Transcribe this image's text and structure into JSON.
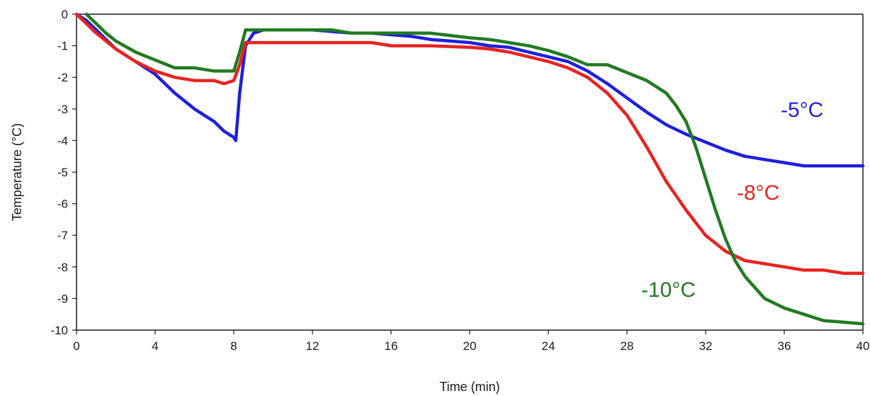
{
  "chart_data": {
    "type": "line",
    "xlabel": "Time (min)",
    "ylabel": "Temperature (°C)",
    "xlim": [
      0,
      40
    ],
    "ylim": [
      -10,
      0
    ],
    "xticks": [
      0,
      4,
      8,
      12,
      16,
      20,
      24,
      28,
      32,
      36,
      40
    ],
    "yticks": [
      0,
      -1,
      -2,
      -3,
      -4,
      -5,
      -6,
      -7,
      -8,
      -9,
      -10
    ],
    "grid": false,
    "legend": "inline labels",
    "series": [
      {
        "name": "-5°C",
        "color": "#1f1fdc",
        "x": [
          0,
          0.5,
          1,
          1.5,
          2,
          3,
          4,
          5,
          6,
          7,
          7.5,
          8,
          8.1,
          8.3,
          8.6,
          9,
          9.5,
          10,
          12,
          13,
          14,
          15,
          16,
          17,
          18,
          19,
          20,
          21,
          22,
          23,
          24,
          25,
          26,
          27,
          28,
          29,
          30,
          31,
          32,
          33,
          34,
          35,
          36,
          37,
          38,
          39,
          40
        ],
        "y": [
          0,
          -0.2,
          -0.5,
          -0.8,
          -1.1,
          -1.5,
          -1.9,
          -2.5,
          -3.0,
          -3.4,
          -3.7,
          -3.9,
          -4.0,
          -2.5,
          -1.0,
          -0.6,
          -0.5,
          -0.5,
          -0.5,
          -0.55,
          -0.6,
          -0.6,
          -0.65,
          -0.7,
          -0.8,
          -0.85,
          -0.9,
          -1.0,
          -1.05,
          -1.2,
          -1.35,
          -1.5,
          -1.8,
          -2.2,
          -2.65,
          -3.1,
          -3.5,
          -3.8,
          -4.05,
          -4.3,
          -4.5,
          -4.6,
          -4.7,
          -4.8,
          -4.8,
          -4.8,
          -4.8
        ]
      },
      {
        "name": "-8°C",
        "color": "#e8231f",
        "x": [
          0,
          0.5,
          1,
          1.5,
          2,
          3,
          4,
          5,
          6,
          7,
          7.5,
          8,
          8.3,
          8.6,
          9,
          10,
          12,
          14,
          15,
          15.5,
          16,
          18,
          20,
          21,
          22,
          23,
          24,
          25,
          26,
          27,
          28,
          29,
          30,
          31,
          32,
          33,
          34,
          35,
          36,
          37,
          38,
          39,
          40
        ],
        "y": [
          0,
          -0.3,
          -0.6,
          -0.85,
          -1.1,
          -1.5,
          -1.8,
          -2.0,
          -2.1,
          -2.1,
          -2.2,
          -2.1,
          -1.6,
          -0.9,
          -0.9,
          -0.9,
          -0.9,
          -0.9,
          -0.9,
          -0.95,
          -1.0,
          -1.0,
          -1.05,
          -1.1,
          -1.2,
          -1.35,
          -1.5,
          -1.7,
          -2.0,
          -2.5,
          -3.2,
          -4.2,
          -5.3,
          -6.2,
          -7.0,
          -7.5,
          -7.8,
          -7.9,
          -8.0,
          -8.1,
          -8.1,
          -8.2,
          -8.2
        ]
      },
      {
        "name": "-10°C",
        "color": "#217a21",
        "x": [
          0.5,
          1,
          1.5,
          2,
          3,
          4,
          5,
          6,
          7,
          7.5,
          8,
          8.3,
          8.6,
          9,
          10,
          12,
          13,
          14,
          16,
          18,
          20,
          21,
          22,
          23,
          24,
          25,
          26,
          27,
          28,
          29,
          30,
          30.5,
          31,
          31.5,
          32,
          32.5,
          33,
          33.5,
          34,
          35,
          36,
          37,
          38,
          39,
          40
        ],
        "y": [
          0,
          -0.3,
          -0.6,
          -0.85,
          -1.2,
          -1.45,
          -1.7,
          -1.7,
          -1.8,
          -1.8,
          -1.8,
          -1.2,
          -0.5,
          -0.5,
          -0.5,
          -0.5,
          -0.5,
          -0.6,
          -0.6,
          -0.6,
          -0.75,
          -0.8,
          -0.9,
          -1.0,
          -1.15,
          -1.35,
          -1.6,
          -1.6,
          -1.85,
          -2.1,
          -2.5,
          -2.9,
          -3.4,
          -4.2,
          -5.2,
          -6.2,
          -7.1,
          -7.8,
          -8.3,
          -9.0,
          -9.3,
          -9.5,
          -9.7,
          -9.75,
          -9.8
        ]
      }
    ]
  }
}
